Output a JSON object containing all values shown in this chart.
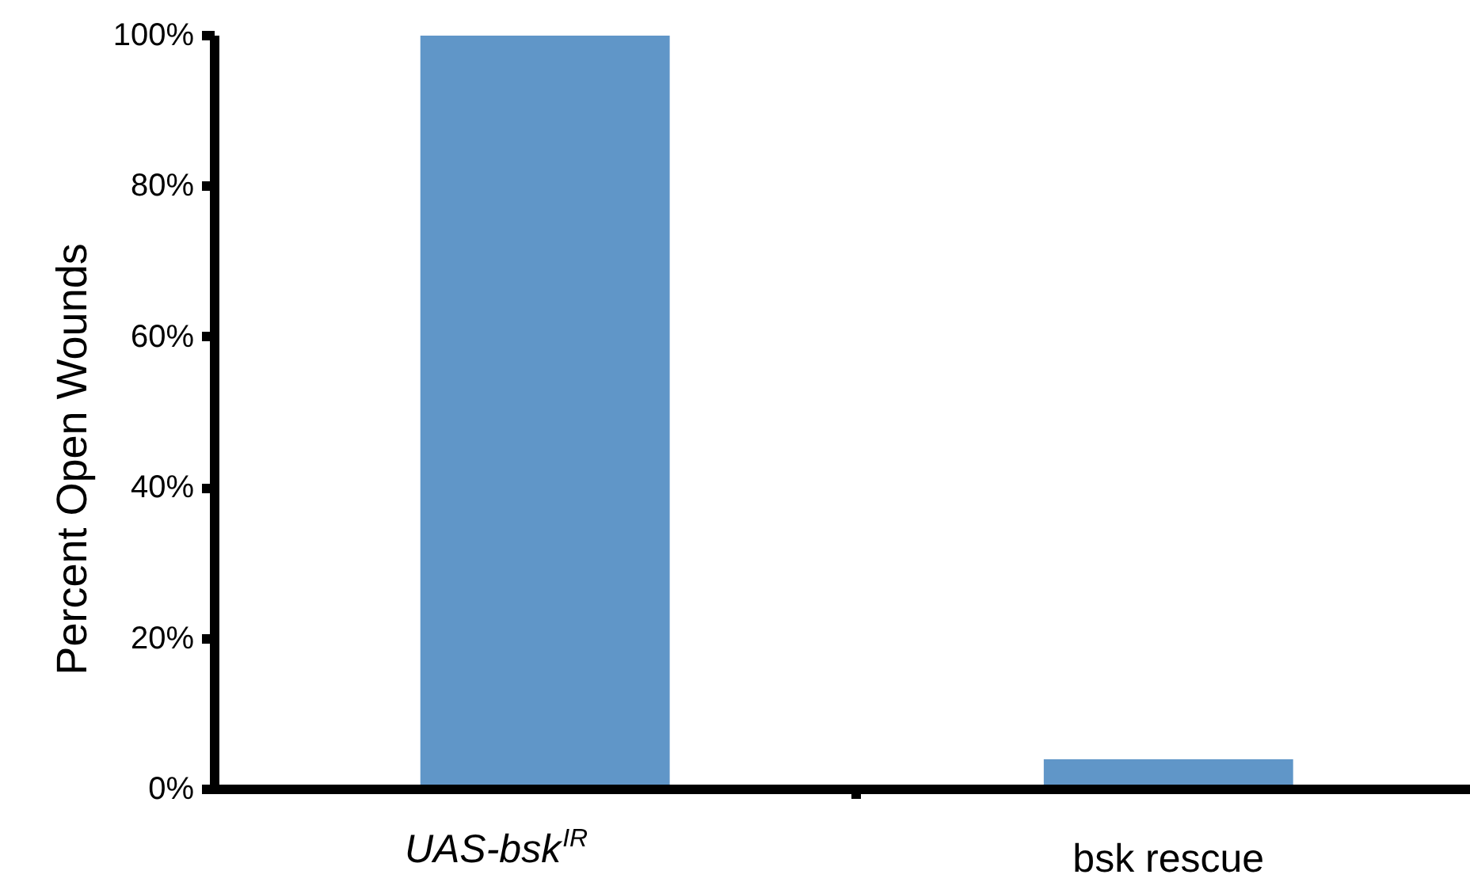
{
  "chart_data": {
    "type": "bar",
    "ylabel": "Percent Open Wounds",
    "categories": [
      "UAS-bsk$^{IR}$",
      "bsk rescue"
    ],
    "values": [
      100,
      4
    ],
    "color": "#6096c8",
    "ylim": [
      0,
      100
    ],
    "yticks": [
      {
        "value": 0,
        "label": "0%"
      },
      {
        "value": 20,
        "label": "20%"
      },
      {
        "value": 40,
        "label": "40%"
      },
      {
        "value": 60,
        "label": "60%"
      },
      {
        "value": 80,
        "label": "80%"
      },
      {
        "value": 100,
        "label": "100%"
      }
    ],
    "grid": false
  }
}
